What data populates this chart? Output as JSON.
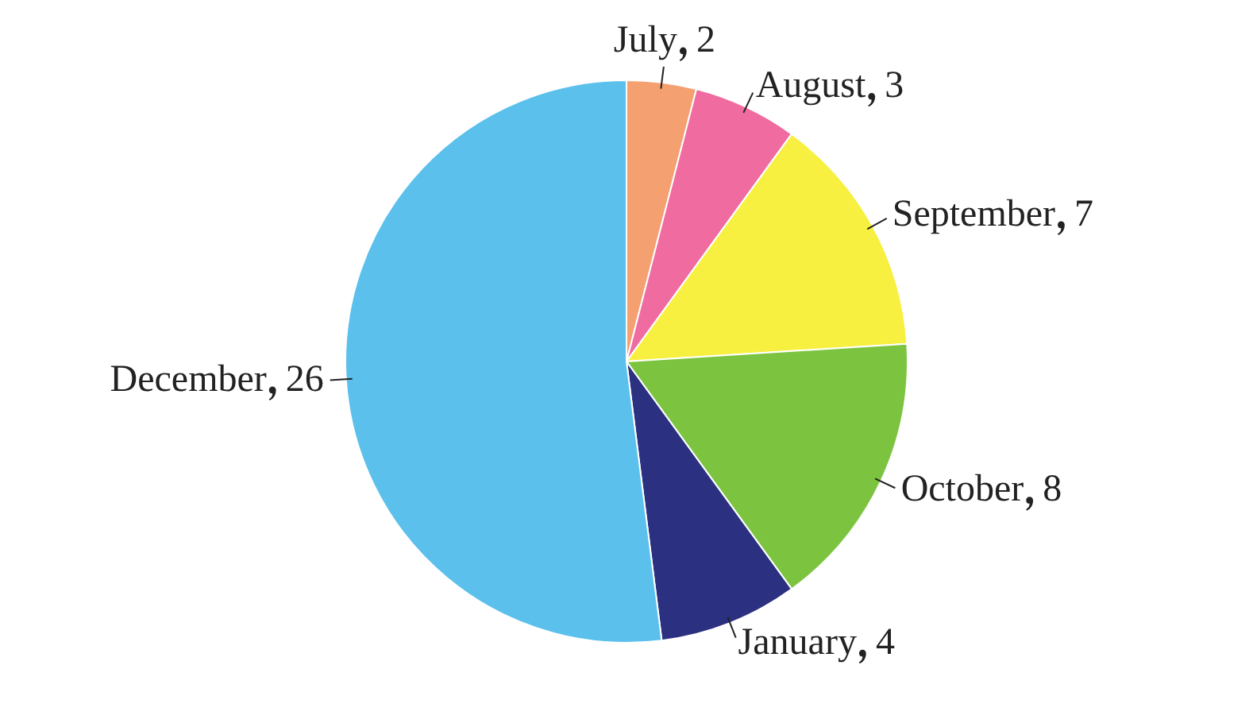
{
  "chart_data": {
    "type": "pie",
    "categories": [
      "July",
      "August",
      "September",
      "October",
      "January",
      "December"
    ],
    "values": [
      2,
      3,
      7,
      8,
      4,
      26
    ],
    "colors": [
      "#f4a070",
      "#f06ca0",
      "#f8f040",
      "#7cc440",
      "#2c3080",
      "#5cc0ec"
    ],
    "data_labels": true
  }
}
